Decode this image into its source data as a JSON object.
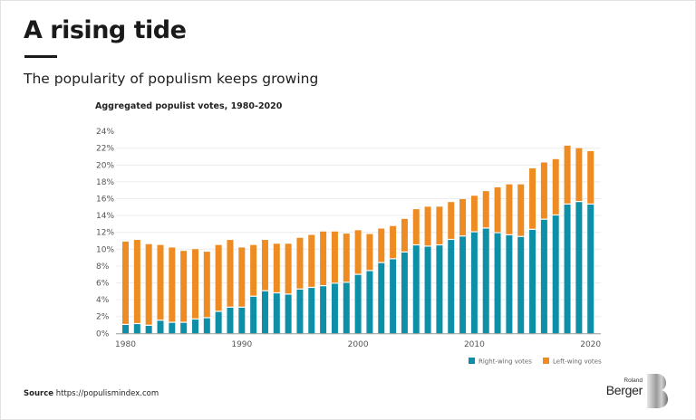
{
  "header": {
    "title": "A rising tide",
    "subtitle": "The popularity of populism keeps growing"
  },
  "footer": {
    "source_label": "Source",
    "source_url": "https://populismindex.com",
    "logo_top": "Roland",
    "logo_bottom": "Berger"
  },
  "colors": {
    "right_wing": "#0E8FA8",
    "left_wing": "#EE8B22"
  },
  "chart_data": {
    "type": "bar",
    "stacked": true,
    "title": "Aggregated populist votes, 1980-2020",
    "xlabel": "",
    "ylabel": "",
    "ylim": [
      0,
      24
    ],
    "y_ticks": [
      "0%",
      "2%",
      "4%",
      "6%",
      "8%",
      "10%",
      "12%",
      "14%",
      "16%",
      "18%",
      "20%",
      "22%",
      "24%"
    ],
    "x_ticks": [
      "1980",
      "1990",
      "2000",
      "2010",
      "2020"
    ],
    "grid": true,
    "legend_position": "bottom-right",
    "categories": [
      1980,
      1981,
      1982,
      1983,
      1984,
      1985,
      1986,
      1987,
      1988,
      1989,
      1990,
      1991,
      1992,
      1993,
      1994,
      1995,
      1996,
      1997,
      1998,
      1999,
      2000,
      2001,
      2002,
      2003,
      2004,
      2005,
      2006,
      2007,
      2008,
      2009,
      2010,
      2011,
      2012,
      2013,
      2014,
      2015,
      2016,
      2017,
      2018,
      2019,
      2020
    ],
    "series": [
      {
        "name": "Right-wing votes",
        "values": [
          1.0,
          1.1,
          0.9,
          1.5,
          1.25,
          1.25,
          1.65,
          1.8,
          2.55,
          3.05,
          3.05,
          4.35,
          5.0,
          4.75,
          4.6,
          5.2,
          5.4,
          5.6,
          5.9,
          6.0,
          6.95,
          7.4,
          8.35,
          8.8,
          9.6,
          10.45,
          10.3,
          10.45,
          11.1,
          11.5,
          12.0,
          12.45,
          11.9,
          11.65,
          11.45,
          12.3,
          13.5,
          14.0,
          15.3,
          15.6,
          15.3
        ]
      },
      {
        "name": "Left-wing votes",
        "values": [
          9.9,
          10.0,
          9.7,
          9.0,
          8.95,
          8.55,
          8.35,
          7.9,
          7.95,
          8.05,
          7.15,
          6.15,
          6.1,
          5.9,
          6.05,
          6.15,
          6.3,
          6.5,
          6.2,
          5.85,
          5.3,
          4.4,
          4.1,
          3.95,
          4.0,
          4.3,
          4.75,
          4.6,
          4.5,
          4.45,
          4.35,
          4.45,
          5.45,
          6.05,
          6.25,
          7.3,
          6.8,
          6.7,
          7.0,
          6.4,
          6.35
        ]
      }
    ]
  }
}
